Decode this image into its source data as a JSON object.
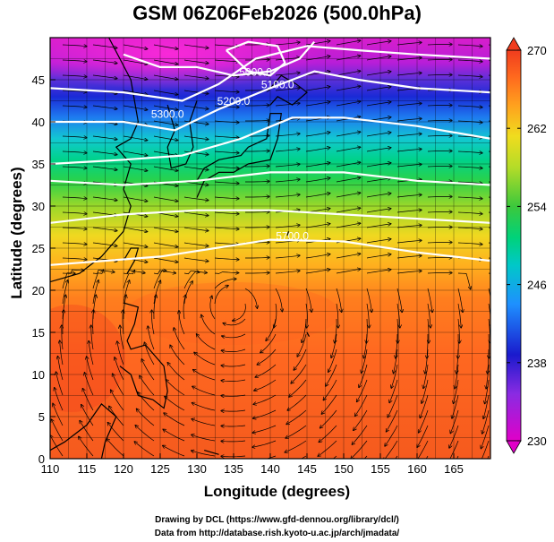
{
  "title": "GSM 06Z06Feb2026 (500.0hPa)",
  "xlabel": "Longitude (degrees)",
  "ylabel": "Latitude  (degrees)",
  "footer": {
    "line1": "Drawing by DCL (https://www.gfd-dennou.org/library/dcl/)",
    "line2": "Data from http://database.rish.kyoto-u.ac.jp/arch/jmadata/"
  },
  "chart_data": {
    "type": "heatmap",
    "x_range": [
      110,
      170
    ],
    "y_range": [
      0,
      50
    ],
    "x_ticks": [
      110,
      115,
      120,
      125,
      130,
      135,
      140,
      145,
      150,
      155,
      160,
      165
    ],
    "y_ticks": [
      0,
      5,
      10,
      15,
      20,
      25,
      30,
      35,
      40,
      45
    ],
    "colorbar": {
      "min": 230,
      "max": 270,
      "ticks": [
        230,
        238,
        246,
        254,
        262,
        270
      ],
      "colors": [
        "#e000c8",
        "#8a2be2",
        "#1a1acd",
        "#1e90ff",
        "#00c8c8",
        "#00d27a",
        "#3cc83c",
        "#b4dc28",
        "#f0dc1e",
        "#ffa01e",
        "#ff6a1e",
        "#f03c1e"
      ]
    },
    "temperature_field": [
      {
        "lat": 48,
        "value": 232
      },
      {
        "lat": 45,
        "value": 236
      },
      {
        "lat": 42,
        "value": 240
      },
      {
        "lat": 39,
        "value": 246
      },
      {
        "lat": 36,
        "value": 250
      },
      {
        "lat": 33,
        "value": 254
      },
      {
        "lat": 30,
        "value": 257
      },
      {
        "lat": 27,
        "value": 260
      },
      {
        "lat": 24,
        "value": 263
      },
      {
        "lat": 20,
        "value": 265
      },
      {
        "lat": 15,
        "value": 266
      },
      {
        "lat": 5,
        "value": 267
      }
    ],
    "height_contours": [
      {
        "label": "5000.0",
        "label_lon": 138,
        "label_lat": 45.5
      },
      {
        "label": "5100.0",
        "label_lon": 141,
        "label_lat": 44
      },
      {
        "label": "5200.0",
        "label_lon": 135,
        "label_lat": 42
      },
      {
        "label": "5300.0",
        "label_lon": 126,
        "label_lat": 40.5
      },
      {
        "label": "5700.0",
        "label_lon": 143,
        "label_lat": 26
      }
    ],
    "low_center": {
      "lon": 135,
      "lat": 45
    },
    "high_center": {
      "lon": 135,
      "lat": 18.5
    }
  }
}
